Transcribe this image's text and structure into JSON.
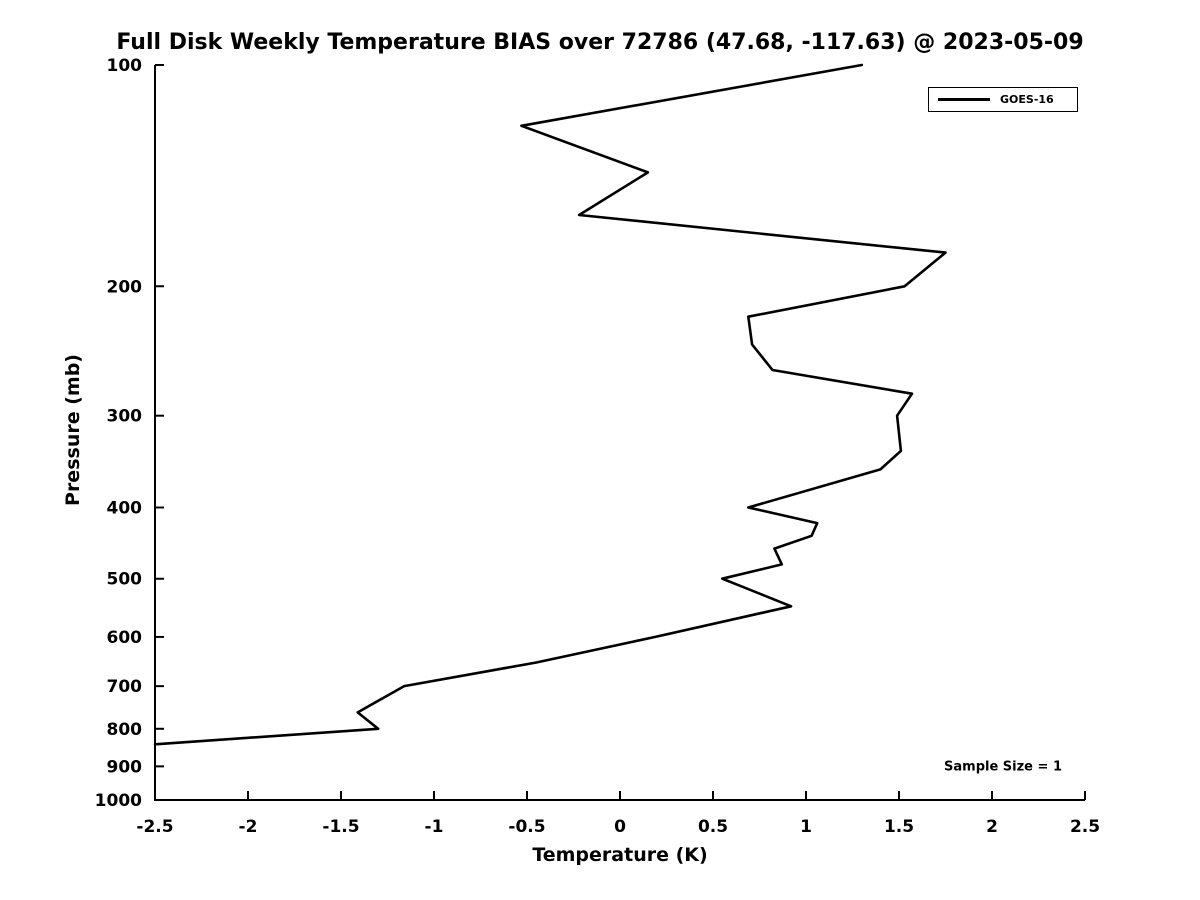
{
  "chart_data": {
    "type": "line",
    "title": "Full Disk Weekly Temperature BIAS over 72786 (47.68, -117.63) @ 2023-05-09",
    "xlabel": "Temperature (K)",
    "ylabel": "Pressure (mb)",
    "xlim": [
      -2.5,
      2.5
    ],
    "ylim": [
      100,
      1000
    ],
    "yscale": "log",
    "y_direction": "increases-downward",
    "grid": false,
    "xtick_values": [
      -2.5,
      -2,
      -1.5,
      -1,
      -0.5,
      0,
      0.5,
      1,
      1.5,
      2,
      2.5
    ],
    "xtick_labels": [
      "-2.5",
      "-2",
      "-1.5",
      "-1",
      "-0.5",
      "0",
      "0.5",
      "1",
      "1.5",
      "2",
      "2.5"
    ],
    "ytick_values": [
      100,
      200,
      300,
      400,
      500,
      600,
      700,
      800,
      900,
      1000
    ],
    "ytick_labels": [
      "100",
      "200",
      "300",
      "400",
      "500",
      "600",
      "700",
      "800",
      "900",
      "1000"
    ],
    "line_color": "#000000",
    "axis_color": "#000000",
    "legend": {
      "position": "top-right",
      "entries": [
        {
          "label": "GOES-16",
          "color": "#000000"
        }
      ]
    },
    "annotation": "Sample Size = 1",
    "series": [
      {
        "name": "GOES-16",
        "color": "#000000",
        "points_format": "[temperature_K, pressure_mb]",
        "points": [
          [
            1.3,
            100
          ],
          [
            -0.53,
            121
          ],
          [
            0.15,
            140
          ],
          [
            -0.22,
            160
          ],
          [
            1.75,
            180
          ],
          [
            1.53,
            200
          ],
          [
            0.69,
            220
          ],
          [
            0.71,
            240
          ],
          [
            0.82,
            260
          ],
          [
            1.57,
            280
          ],
          [
            1.49,
            300
          ],
          [
            1.51,
            335
          ],
          [
            1.4,
            355
          ],
          [
            0.69,
            400
          ],
          [
            1.06,
            420
          ],
          [
            1.03,
            437
          ],
          [
            0.83,
            455
          ],
          [
            0.87,
            478
          ],
          [
            0.55,
            500
          ],
          [
            0.92,
            545
          ],
          [
            0.19,
            600
          ],
          [
            -0.45,
            650
          ],
          [
            -1.16,
            700
          ],
          [
            -1.41,
            760
          ],
          [
            -1.3,
            800
          ],
          [
            -2.5,
            840
          ]
        ]
      }
    ]
  }
}
